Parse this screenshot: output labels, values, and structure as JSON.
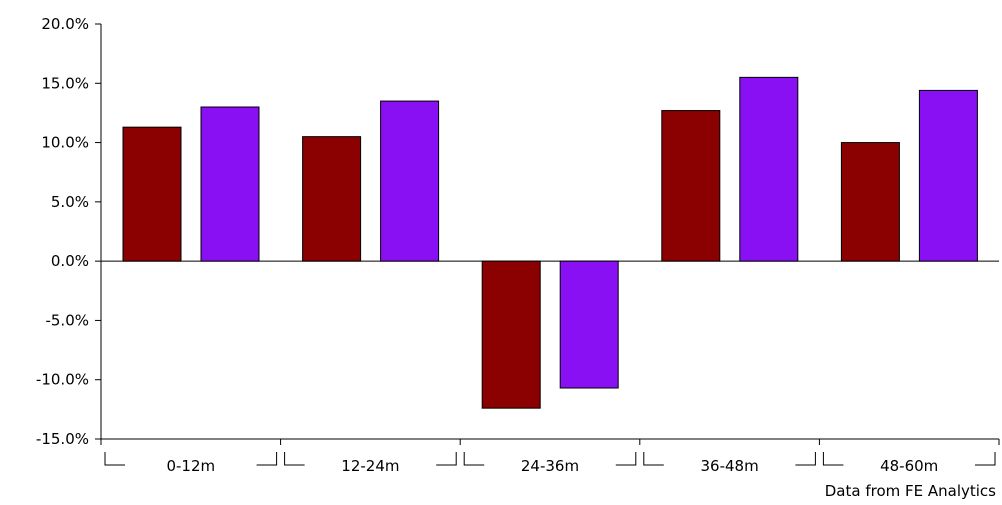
{
  "chart_data": {
    "type": "bar",
    "categories": [
      "0-12m",
      "12-24m",
      "24-36m",
      "36-48m",
      "48-60m"
    ],
    "series": [
      {
        "color": "#8b0000",
        "values": [
          11.3,
          10.5,
          -12.4,
          12.7,
          10.0
        ]
      },
      {
        "color": "#8a10f4",
        "values": [
          13.0,
          13.5,
          -10.7,
          15.5,
          14.4
        ]
      }
    ],
    "y_ticks": [
      "20.0%",
      "15.0%",
      "10.0%",
      "5.0%",
      "0.0%",
      "-5.0%",
      "-10.0%",
      "-15.0%"
    ],
    "ylim": [
      -15,
      20
    ],
    "grid": false,
    "legend": "none"
  },
  "source_note": "Data from FE Analytics"
}
